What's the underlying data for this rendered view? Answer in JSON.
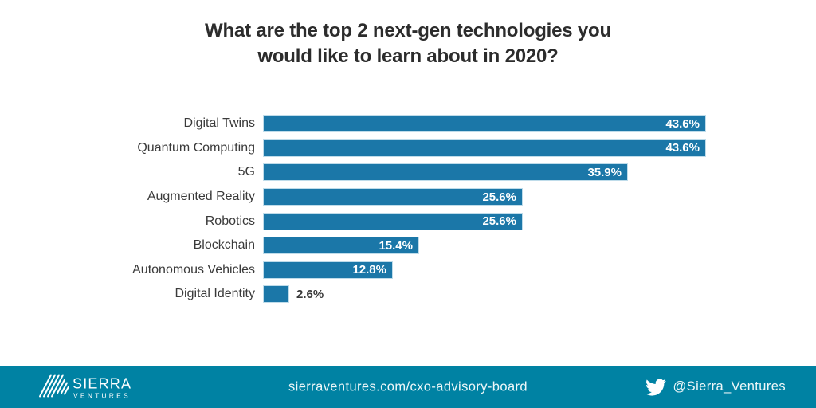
{
  "title": {
    "lines": [
      "What are the top 2 next-gen technologies you",
      "would like to learn about in 2020?"
    ]
  },
  "chart_data": {
    "type": "bar",
    "orientation": "horizontal",
    "title": "What are the top 2 next-gen technologies you would like to learn about in 2020?",
    "categories": [
      "Digital Twins",
      "Quantum Computing",
      "5G",
      "Augmented Reality",
      "Robotics",
      "Blockchain",
      "Autonomous Vehicles",
      "Digital Identity"
    ],
    "values": [
      43.6,
      43.6,
      35.9,
      25.6,
      25.6,
      15.4,
      12.8,
      2.6
    ],
    "value_labels": [
      "43.6%",
      "43.6%",
      "35.9%",
      "25.6%",
      "25.6%",
      "15.4%",
      "12.8%",
      "2.6%"
    ],
    "xlabel": "",
    "ylabel": "",
    "xlim": [
      0,
      45
    ],
    "grid": false,
    "legend": "none",
    "bar_color": "#1b77a8",
    "bar_edge_color": "#bfdcea",
    "value_label_color_inside": "#ffffff",
    "value_label_color_outside": "#3a3a3a"
  },
  "footer": {
    "background": "#0082a3",
    "logo": {
      "line1": "SIERRA",
      "line2": "VENTURES"
    },
    "url": "sierraventures.com/cxo-advisory-board",
    "twitter_icon": "twitter-bird-icon",
    "twitter_handle": "@Sierra_Ventures"
  }
}
